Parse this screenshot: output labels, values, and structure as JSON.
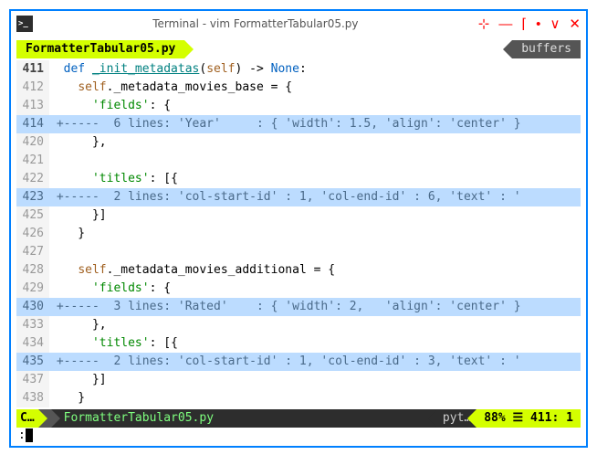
{
  "window": {
    "title": "Terminal - vim FormatterTabular05.py"
  },
  "tabs": {
    "active": "FormatterTabular05.py",
    "right": "buffers"
  },
  "lines": [
    {
      "num": "411",
      "fold": false,
      "html": "  <span class='kw'>def</span> <span class='fn'>_init_metadatas</span>(<span class='self'>self</span>) -> <span class='type'>None</span>:"
    },
    {
      "num": "412",
      "fold": false,
      "html": "    <span class='self'>self</span>._metadata_movies_base = {"
    },
    {
      "num": "413",
      "fold": false,
      "html": "      <span class='str'>'fields'</span>: {"
    },
    {
      "num": "414",
      "fold": true,
      "html": " +-----  6 lines: 'Year'     : { 'width': 1.5, 'align': 'center' }"
    },
    {
      "num": "420",
      "fold": false,
      "html": "      },"
    },
    {
      "num": "421",
      "fold": false,
      "html": ""
    },
    {
      "num": "422",
      "fold": false,
      "html": "      <span class='str'>'titles'</span>: [{"
    },
    {
      "num": "423",
      "fold": true,
      "html": " +-----  2 lines: 'col-start-id' : 1, 'col-end-id' : 6, 'text' : '"
    },
    {
      "num": "425",
      "fold": false,
      "html": "      }]"
    },
    {
      "num": "426",
      "fold": false,
      "html": "    }"
    },
    {
      "num": "427",
      "fold": false,
      "html": ""
    },
    {
      "num": "428",
      "fold": false,
      "html": "    <span class='self'>self</span>._metadata_movies_additional = {"
    },
    {
      "num": "429",
      "fold": false,
      "html": "      <span class='str'>'fields'</span>: {"
    },
    {
      "num": "430",
      "fold": true,
      "html": " +-----  3 lines: 'Rated'    : { 'width': 2,   'align': 'center' }"
    },
    {
      "num": "433",
      "fold": false,
      "html": "      },"
    },
    {
      "num": "434",
      "fold": false,
      "html": "      <span class='str'>'titles'</span>: [{"
    },
    {
      "num": "435",
      "fold": true,
      "html": " +-----  2 lines: 'col-start-id' : 1, 'col-end-id' : 3, 'text' : '"
    },
    {
      "num": "437",
      "fold": false,
      "html": "      }]"
    },
    {
      "num": "438",
      "fold": false,
      "html": "    }"
    },
    {
      "num": "",
      "fold": false,
      "html": ""
    }
  ],
  "status": {
    "mode": "C…",
    "file": "FormatterTabular05.py",
    "filetype": "pyt…",
    "percent": "88%",
    "sep": "☰",
    "line": "411",
    "col": "1"
  },
  "cmdline": ":",
  "controls": {
    "pin": "⊹",
    "min": "—",
    "max": "⌈",
    "dot": "•",
    "down": "∨",
    "close": "✕"
  }
}
